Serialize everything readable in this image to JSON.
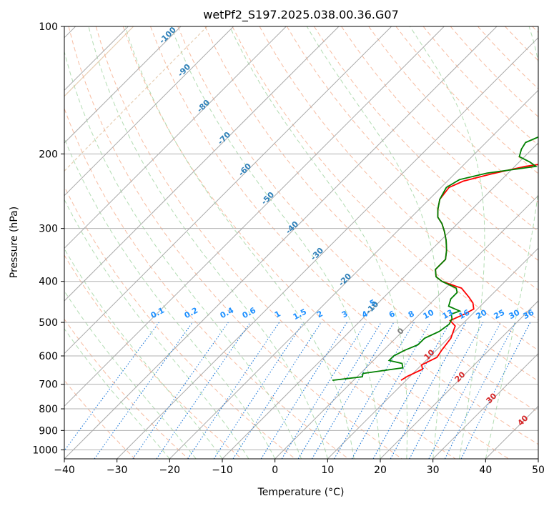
{
  "chart_data": {
    "type": "line",
    "title": "wetPf2_S197.2025.038.00.36.G07",
    "xlabel": "Temperature (°C)",
    "ylabel": "Pressure (hPa)",
    "xlim": [
      -40,
      50
    ],
    "ylim": [
      1050,
      100
    ],
    "y_scale": "log",
    "grid": true,
    "x_ticks": [
      -40,
      -30,
      -20,
      -10,
      0,
      10,
      20,
      30,
      40,
      50
    ],
    "y_ticks": [
      100,
      200,
      300,
      400,
      500,
      600,
      700,
      800,
      900,
      1000
    ],
    "series": [
      {
        "role": "temperature",
        "color": "#ff0000",
        "points": [
          [
            9,
            685
          ],
          [
            9.5,
            670
          ],
          [
            11,
            645
          ],
          [
            10,
            630
          ],
          [
            11.5,
            605
          ],
          [
            11,
            580
          ],
          [
            10.5,
            545
          ],
          [
            9,
            510
          ],
          [
            7,
            495
          ],
          [
            8.5,
            478
          ],
          [
            9.3,
            465
          ],
          [
            8,
            450
          ],
          [
            6,
            435
          ],
          [
            3,
            415
          ],
          [
            -2,
            400
          ],
          [
            -4,
            390
          ],
          [
            -5.5,
            375
          ],
          [
            -5.5,
            355
          ],
          [
            -7,
            338
          ],
          [
            -9,
            320
          ],
          [
            -11,
            305
          ],
          [
            -13,
            292
          ],
          [
            -15,
            282
          ],
          [
            -16.5,
            270
          ],
          [
            -18,
            256
          ],
          [
            -18.5,
            240
          ],
          [
            -17,
            232
          ],
          [
            -13,
            223
          ],
          [
            -8,
            214
          ],
          [
            -2,
            208
          ],
          [
            5,
            203
          ],
          [
            10,
            197
          ],
          [
            12.5,
            190
          ],
          [
            15.5,
            183
          ],
          [
            16.5,
            177
          ],
          [
            17,
            170
          ],
          [
            18,
            162
          ],
          [
            20,
            155
          ],
          [
            22.5,
            147
          ],
          [
            24.5,
            140
          ],
          [
            25.5,
            133
          ],
          [
            26.5,
            125
          ],
          [
            27.5,
            118
          ],
          [
            29,
            110
          ],
          [
            31,
            105
          ],
          [
            32.8,
            100
          ]
        ]
      },
      {
        "role": "dewpoint",
        "color": "#008000",
        "points": [
          [
            -4,
            685
          ],
          [
            1,
            672
          ],
          [
            0.5,
            660
          ],
          [
            7,
            640
          ],
          [
            6,
            625
          ],
          [
            3,
            615
          ],
          [
            3,
            600
          ],
          [
            4,
            582
          ],
          [
            5.5,
            565
          ],
          [
            5.5,
            545
          ],
          [
            7,
            525
          ],
          [
            7.5,
            505
          ],
          [
            7,
            490
          ],
          [
            6,
            478
          ],
          [
            7,
            470
          ],
          [
            4,
            458
          ],
          [
            3,
            440
          ],
          [
            3,
            425
          ],
          [
            2,
            415
          ],
          [
            -2,
            400
          ],
          [
            -4,
            390
          ],
          [
            -5.5,
            375
          ],
          [
            -5.5,
            355
          ],
          [
            -7,
            338
          ],
          [
            -9,
            320
          ],
          [
            -11,
            305
          ],
          [
            -13,
            292
          ],
          [
            -15,
            282
          ],
          [
            -16.5,
            270
          ],
          [
            -18,
            256
          ],
          [
            -19,
            240
          ],
          [
            -18,
            230
          ],
          [
            -14,
            222
          ],
          [
            -6,
            214
          ],
          [
            -8,
            209
          ],
          [
            -11,
            203
          ],
          [
            -12,
            195
          ],
          [
            -12.5,
            188
          ],
          [
            -11,
            182
          ],
          [
            -9,
            176
          ],
          [
            -9.5,
            170
          ],
          [
            -9,
            163
          ],
          [
            -9,
            155
          ],
          [
            -9.5,
            147
          ],
          [
            -9,
            140
          ],
          [
            -8,
            133
          ],
          [
            -6.5,
            125
          ],
          [
            -5,
            118
          ],
          [
            -3,
            110
          ],
          [
            -1.5,
            105
          ],
          [
            0,
            100
          ]
        ]
      }
    ],
    "mixing_ratio_labels": [
      "0.1",
      "0.2",
      "0.4",
      "0.6",
      "1",
      "1.5",
      "2",
      "3",
      "4",
      "5",
      "6",
      "8",
      "10",
      "13",
      "16",
      "20",
      "25",
      "30",
      "36"
    ],
    "isotherm_labels": [
      "-100",
      "-90",
      "-80",
      "-70",
      "-60",
      "-50",
      "-40",
      "-30",
      "-20",
      "-10",
      "0",
      "10",
      "20",
      "30",
      "40"
    ]
  }
}
